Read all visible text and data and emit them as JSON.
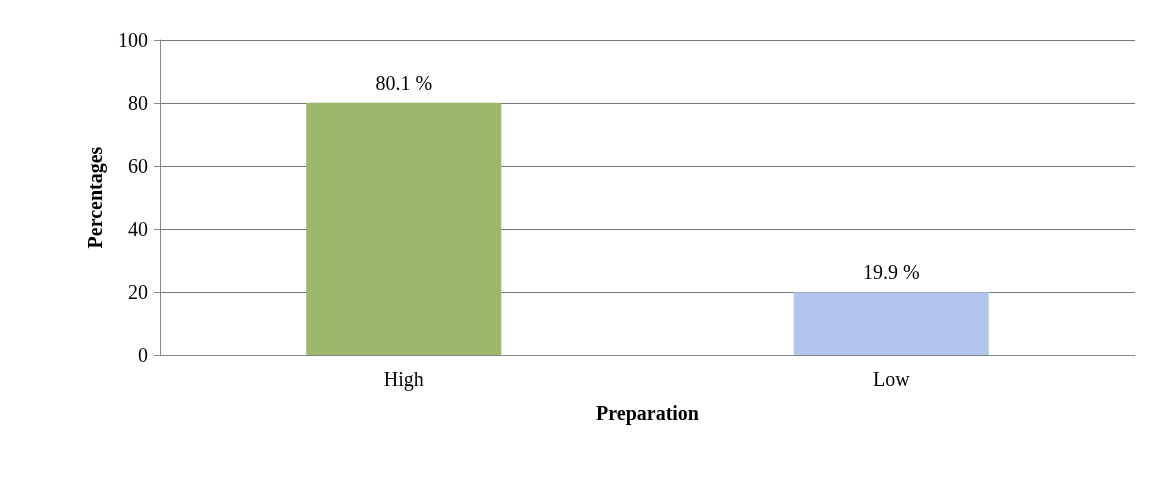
{
  "chart_data": {
    "type": "bar",
    "xlabel": "Preparation",
    "ylabel": "Percentages",
    "categories": [
      "High",
      "Low"
    ],
    "values": [
      80.1,
      19.9
    ],
    "colors": [
      "#9cb86c",
      "#b3c5ec"
    ],
    "value_labels": [
      "80.1 %",
      "19.9 %"
    ],
    "ylim": [
      0,
      100
    ],
    "yticks": [
      0,
      20,
      40,
      60,
      80,
      100
    ],
    "grid": "y"
  }
}
